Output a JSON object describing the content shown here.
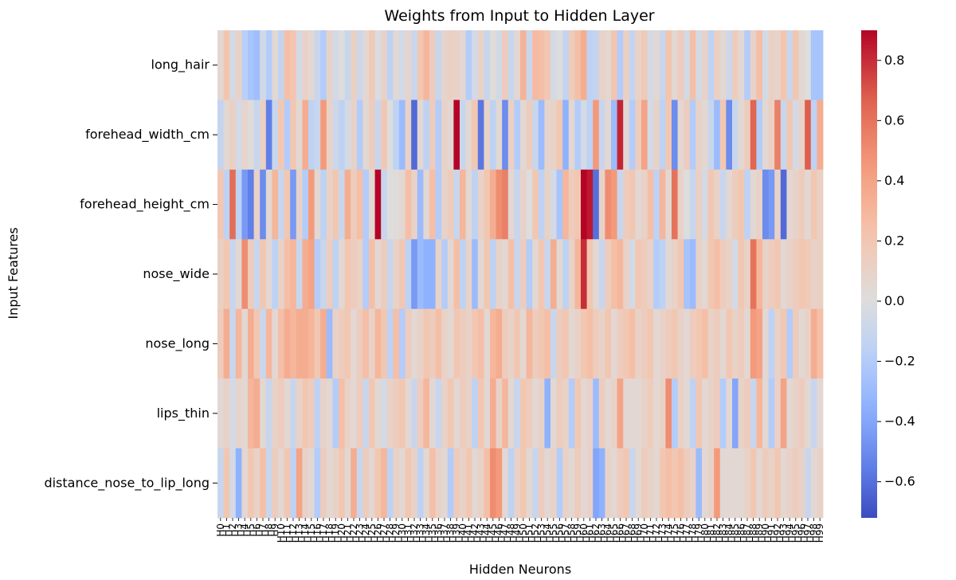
{
  "chart_data": {
    "type": "heatmap",
    "title": "Weights from Input to Hidden Layer",
    "xlabel": "Hidden Neurons",
    "ylabel": "Input Features",
    "colormap": "coolwarm",
    "vmin": -0.72,
    "vmax": 0.9,
    "y_categories": [
      "long_hair",
      "forehead_width_cm",
      "forehead_height_cm",
      "nose_wide",
      "nose_long",
      "lips_thin",
      "distance_nose_to_lip_long"
    ],
    "x_categories": [
      "H0",
      "H1",
      "H2",
      "H3",
      "H4",
      "H5",
      "H6",
      "H7",
      "H8",
      "H9",
      "H10",
      "H11",
      "H12",
      "H13",
      "H14",
      "H15",
      "H16",
      "H17",
      "H18",
      "H19",
      "H20",
      "H21",
      "H22",
      "H23",
      "H24",
      "H25",
      "H26",
      "H27",
      "H28",
      "H29",
      "H30",
      "H31",
      "H32",
      "H33",
      "H34",
      "H35",
      "H36",
      "H37",
      "H38",
      "H39",
      "H40",
      "H41",
      "H42",
      "H43",
      "H44",
      "H45",
      "H46",
      "H47",
      "H48",
      "H49",
      "H50",
      "H51",
      "H52",
      "H53",
      "H54",
      "H55",
      "H56",
      "H57",
      "H58",
      "H59",
      "H60",
      "H61",
      "H62",
      "H63",
      "H64",
      "H65",
      "H66",
      "H67",
      "H68",
      "H69",
      "H70",
      "H71",
      "H72",
      "H73",
      "H74",
      "H75",
      "H76",
      "H77",
      "H78",
      "H79",
      "H80",
      "H81",
      "H82",
      "H83",
      "H84",
      "H85",
      "H86",
      "H87",
      "H88",
      "H89",
      "H90",
      "H91",
      "H92",
      "H93",
      "H94",
      "H95",
      "H96",
      "H97",
      "H98",
      "H99"
    ],
    "colorbar_ticks": [
      -0.6,
      -0.4,
      -0.2,
      0.0,
      0.2,
      0.4,
      0.6,
      0.8
    ],
    "colorbar_tick_labels": [
      "−0.6",
      "−0.4",
      "−0.2",
      "0.0",
      "0.2",
      "0.4",
      "0.6",
      "0.8"
    ],
    "values": [
      [
        0.05,
        0.22,
        -0.05,
        0.1,
        -0.18,
        -0.25,
        -0.28,
        -0.06,
        -0.2,
        0.05,
        -0.12,
        0.25,
        0.22,
        -0.05,
        0.1,
        0.05,
        -0.1,
        -0.2,
        0.1,
        -0.05,
        0.0,
        -0.1,
        0.12,
        -0.08,
        0.05,
        0.18,
        -0.02,
        0.1,
        -0.15,
        0.05,
        -0.06,
        0.08,
        -0.1,
        0.2,
        0.3,
        0.15,
        -0.1,
        0.08,
        0.12,
        0.1,
        0.05,
        -0.2,
        -0.05,
        0.1,
        -0.1,
        0.02,
        -0.06,
        0.15,
        -0.1,
        0.05,
        0.32,
        -0.1,
        0.28,
        0.25,
        0.2,
        -0.05,
        0.0,
        -0.12,
        0.15,
        0.25,
        0.35,
        -0.15,
        -0.12,
        0.1,
        0.05,
        0.22,
        -0.2,
        0.12,
        -0.12,
        0.1,
        0.18,
        -0.05,
        0.05,
        -0.1,
        0.22,
        0.05,
        0.15,
        -0.06,
        0.25,
        -0.05,
        0.1,
        -0.15,
        0.12,
        0.05,
        -0.08,
        0.15,
        0.05,
        -0.2,
        0.1,
        0.25,
        -0.05,
        0.12,
        0.08,
        0.22,
        -0.1,
        0.2,
        0.05,
        0.0,
        -0.25,
        -0.25
      ],
      [
        -0.12,
        0.05,
        0.12,
        -0.05,
        0.08,
        0.02,
        -0.1,
        0.12,
        -0.55,
        -0.1,
        0.2,
        -0.2,
        0.2,
        0.05,
        0.35,
        -0.15,
        -0.1,
        0.45,
        0.1,
        -0.08,
        -0.15,
        -0.05,
        0.1,
        -0.2,
        0.05,
        0.15,
        -0.1,
        0.2,
        0.0,
        -0.15,
        -0.3,
        0.1,
        -0.62,
        0.05,
        -0.15,
        0.15,
        -0.2,
        0.1,
        0.05,
        0.9,
        -0.1,
        0.05,
        0.2,
        -0.58,
        0.1,
        -0.15,
        0.05,
        -0.5,
        0.12,
        -0.2,
        0.05,
        0.15,
        -0.1,
        -0.3,
        0.08,
        0.1,
        0.2,
        -0.35,
        0.05,
        -0.2,
        -0.05,
        -0.15,
        0.45,
        -0.1,
        0.05,
        -0.3,
        0.82,
        0.05,
        -0.2,
        0.15,
        0.4,
        -0.05,
        0.1,
        -0.15,
        0.2,
        -0.5,
        0.05,
        0.15,
        -0.2,
        0.1,
        0.05,
        -0.1,
        -0.3,
        0.2,
        -0.5,
        -0.1,
        0.05,
        0.15,
        0.65,
        -0.2,
        0.05,
        0.12,
        0.55,
        -0.1,
        0.2,
        -0.05,
        0.1,
        0.68,
        -0.15,
        0.35
      ],
      [
        0.2,
        -0.15,
        0.62,
        -0.15,
        -0.45,
        -0.55,
        0.1,
        -0.5,
        0.05,
        0.3,
        -0.1,
        0.2,
        -0.45,
        0.1,
        -0.2,
        0.45,
        0.05,
        -0.15,
        0.1,
        0.2,
        -0.1,
        0.35,
        0.15,
        0.25,
        -0.2,
        0.05,
        0.9,
        -0.1,
        0.0,
        0.02,
        0.05,
        0.25,
        0.1,
        -0.3,
        0.05,
        0.25,
        -0.2,
        0.1,
        0.15,
        -0.1,
        0.3,
        0.05,
        -0.15,
        0.1,
        0.2,
        0.35,
        0.5,
        0.55,
        0.05,
        -0.1,
        0.1,
        0.0,
        0.2,
        -0.15,
        0.1,
        -0.05,
        -0.25,
        0.3,
        0.15,
        0.2,
        0.9,
        0.85,
        -0.6,
        0.1,
        0.5,
        0.45,
        -0.1,
        0.15,
        0.2,
        0.05,
        0.1,
        0.25,
        -0.15,
        0.3,
        0.05,
        0.6,
        0.1,
        0.0,
        -0.1,
        0.12,
        -0.05,
        0.2,
        0.1,
        -0.1,
        0.05,
        0.15,
        0.2,
        -0.15,
        0.05,
        0.1,
        -0.5,
        -0.45,
        0.1,
        -0.62,
        0.05,
        0.1,
        0.15,
        0.05,
        0.2,
        0.12
      ],
      [
        0.12,
        0.2,
        -0.1,
        0.05,
        0.5,
        0.15,
        -0.1,
        0.2,
        0.05,
        -0.15,
        0.1,
        0.25,
        0.3,
        -0.1,
        0.35,
        0.4,
        -0.2,
        -0.1,
        0.15,
        -0.15,
        0.05,
        0.2,
        0.15,
        0.1,
        -0.2,
        0.25,
        0.05,
        0.15,
        -0.1,
        0.1,
        0.2,
        -0.15,
        -0.45,
        -0.3,
        -0.35,
        -0.35,
        0.1,
        -0.2,
        0.05,
        0.25,
        -0.15,
        0.1,
        -0.3,
        0.05,
        0.2,
        -0.15,
        0.1,
        0.05,
        0.25,
        -0.1,
        0.15,
        -0.2,
        0.05,
        0.2,
        -0.1,
        0.35,
        0.05,
        -0.15,
        0.1,
        0.3,
        0.8,
        0.2,
        0.05,
        -0.1,
        0.15,
        0.25,
        0.3,
        0.1,
        -0.05,
        0.2,
        0.15,
        0.1,
        -0.2,
        -0.15,
        0.05,
        0.1,
        0.2,
        -0.25,
        -0.3,
        0.1,
        0.05,
        0.2,
        0.25,
        0.15,
        0.1,
        -0.05,
        0.2,
        0.1,
        0.6,
        0.3,
        0.1,
        0.15,
        0.2,
        0.05,
        0.1,
        0.15,
        0.2,
        0.18,
        0.1,
        0.12
      ],
      [
        0.15,
        0.35,
        -0.1,
        0.3,
        0.05,
        0.35,
        0.2,
        -0.1,
        0.3,
        0.05,
        0.25,
        0.35,
        0.3,
        0.35,
        0.35,
        0.3,
        0.2,
        0.35,
        -0.3,
        0.1,
        0.15,
        0.2,
        0.05,
        0.15,
        0.25,
        0.1,
        0.3,
        0.2,
        -0.15,
        0.25,
        -0.2,
        0.15,
        0.05,
        0.1,
        0.2,
        0.15,
        0.25,
        0.1,
        0.05,
        0.2,
        0.15,
        0.1,
        0.2,
        0.25,
        0.05,
        0.3,
        0.35,
        0.15,
        0.1,
        0.2,
        0.05,
        0.3,
        0.15,
        0.2,
        0.25,
        -0.1,
        0.15,
        0.2,
        0.05,
        0.1,
        0.2,
        0.25,
        0.15,
        0.1,
        0.2,
        0.05,
        0.15,
        0.2,
        0.25,
        0.1,
        0.15,
        0.2,
        0.05,
        0.1,
        0.15,
        0.2,
        0.1,
        0.05,
        0.15,
        0.2,
        0.25,
        0.1,
        0.15,
        0.05,
        0.2,
        0.1,
        0.15,
        0.05,
        0.45,
        0.4,
        0.05,
        -0.15,
        0.1,
        0.2,
        -0.2,
        0.15,
        0.05,
        0.1,
        0.35,
        0.25
      ],
      [
        0.05,
        0.1,
        -0.05,
        0.08,
        0.05,
        0.3,
        0.35,
        0.05,
        -0.1,
        0.1,
        0.15,
        0.05,
        -0.1,
        0.1,
        0.2,
        0.15,
        -0.15,
        0.1,
        0.05,
        -0.2,
        0.25,
        0.1,
        0.05,
        0.15,
        -0.1,
        0.2,
        0.05,
        -0.05,
        0.1,
        0.15,
        0.2,
        0.05,
        -0.1,
        0.15,
        0.3,
        0.05,
        -0.1,
        0.1,
        0.2,
        0.05,
        0.15,
        0.1,
        -0.15,
        0.2,
        0.05,
        0.35,
        0.1,
        0.3,
        0.05,
        -0.1,
        0.2,
        0.15,
        0.05,
        0.1,
        -0.35,
        0.05,
        0.15,
        0.1,
        -0.2,
        0.2,
        0.05,
        0.1,
        -0.3,
        0.15,
        0.05,
        0.1,
        0.4,
        0.05,
        0.05,
        0.05,
        0.1,
        0.15,
        0.05,
        0.1,
        0.5,
        -0.2,
        0.1,
        0.05,
        -0.15,
        0.2,
        0.05,
        0.1,
        0.15,
        -0.2,
        0.05,
        -0.4,
        0.1,
        0.15,
        -0.1,
        0.3,
        0.05,
        -0.2,
        0.1,
        0.4,
        0.05,
        0.1,
        0.15,
        0.05,
        -0.1,
        0.05
      ],
      [
        -0.1,
        0.2,
        -0.05,
        -0.35,
        0.05,
        0.2,
        0.1,
        0.25,
        -0.1,
        0.15,
        0.05,
        0.2,
        -0.15,
        0.4,
        0.1,
        0.05,
        -0.2,
        0.15,
        0.05,
        0.1,
        0.2,
        0.05,
        0.35,
        -0.1,
        0.15,
        0.05,
        0.2,
        0.3,
        -0.15,
        0.1,
        0.05,
        0.2,
        0.1,
        -0.15,
        0.05,
        0.25,
        0.1,
        0.05,
        -0.2,
        0.15,
        0.1,
        0.2,
        0.05,
        0.1,
        0.25,
        0.5,
        0.45,
        0.05,
        -0.15,
        0.1,
        0.2,
        0.05,
        -0.1,
        0.15,
        0.05,
        0.1,
        -0.2,
        0.1,
        0.05,
        0.15,
        0.05,
        0.1,
        -0.4,
        -0.35,
        0.1,
        0.05,
        0.15,
        0.2,
        -0.1,
        0.05,
        0.15,
        0.1,
        0.05,
        0.2,
        0.25,
        0.2,
        0.25,
        0.15,
        0.1,
        -0.3,
        0.05,
        0.1,
        0.45,
        0.05,
        0.05,
        0.05,
        0.05,
        0.1,
        0.2,
        0.05,
        0.15,
        0.1,
        0.2,
        0.05,
        0.1,
        0.15,
        0.1,
        -0.1,
        0.05,
        0.1
      ]
    ]
  }
}
